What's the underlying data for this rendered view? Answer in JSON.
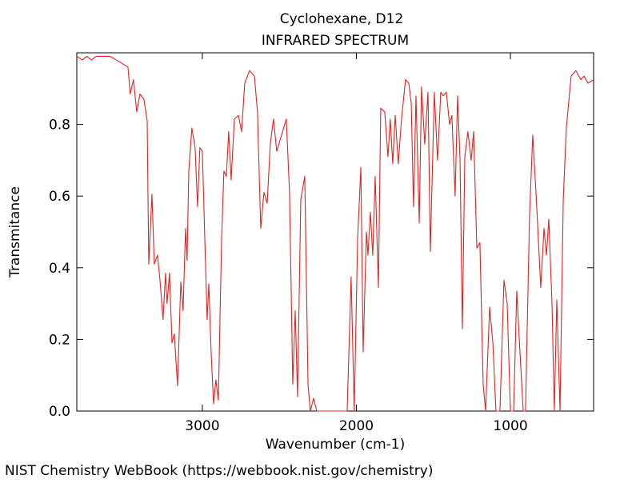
{
  "chart_data": {
    "type": "line",
    "title": "Cyclohexane, D12",
    "subtitle": "INFRARED SPECTRUM",
    "x_label": "Wavenumber (cm-1)",
    "y_label": "Transmitance",
    "source": "NIST Chemistry WebBook (https://webbook.nist.gov/chemistry)",
    "xlim": [
      3815,
      460
    ],
    "ylim": [
      0,
      1.0
    ],
    "xticks": [
      3000,
      2000,
      1000
    ],
    "yticks": [
      {
        "value": 0,
        "label": "0.0"
      },
      0.2,
      0.4,
      0.6,
      0.8
    ],
    "grid": false,
    "series": [
      {
        "color": "#e8201e",
        "x": [
          3815,
          3780,
          3750,
          3720,
          3690,
          3650,
          3600,
          3560,
          3520,
          3483,
          3468,
          3447,
          3426,
          3405,
          3379,
          3358,
          3348,
          3327,
          3312,
          3291,
          3275,
          3255,
          3239,
          3229,
          3213,
          3197,
          3182,
          3161,
          3140,
          3125,
          3109,
          3099,
          3088,
          3068,
          3047,
          3031,
          3016,
          3000,
          2984,
          2969,
          2958,
          2943,
          2927,
          2912,
          2896,
          2875,
          2860,
          2844,
          2829,
          2813,
          2792,
          2766,
          2745,
          2725,
          2694,
          2662,
          2642,
          2621,
          2600,
          2579,
          2559,
          2538,
          2517,
          2486,
          2455,
          2434,
          2413,
          2397,
          2382,
          2361,
          2335,
          2314,
          2299,
          2278,
          2257,
          2060,
          2034,
          2014,
          1992,
          1971,
          1956,
          1935,
          1925,
          1909,
          1894,
          1878,
          1857,
          1842,
          1816,
          1795,
          1780,
          1764,
          1748,
          1728,
          1707,
          1681,
          1660,
          1644,
          1629,
          1613,
          1592,
          1577,
          1556,
          1535,
          1520,
          1494,
          1473,
          1452,
          1437,
          1416,
          1395,
          1380,
          1359,
          1343,
          1327,
          1312,
          1296,
          1276,
          1255,
          1239,
          1218,
          1198,
          1177,
          1161,
          1135,
          1114,
          1094,
          1068,
          1042,
          1021,
          1000,
          979,
          959,
          938,
          917,
          902,
          876,
          855,
          834,
          803,
          782,
          766,
          751,
          730,
          715,
          699,
          678,
          657,
          637,
          606,
          575,
          543,
          522,
          496,
          460
        ],
        "values": [
          0.99,
          0.98,
          0.99,
          0.98,
          0.99,
          0.99,
          0.99,
          0.98,
          0.97,
          0.96,
          0.885,
          0.925,
          0.835,
          0.885,
          0.87,
          0.81,
          0.41,
          0.605,
          0.41,
          0.435,
          0.365,
          0.255,
          0.385,
          0.3,
          0.385,
          0.19,
          0.215,
          0.07,
          0.36,
          0.28,
          0.51,
          0.42,
          0.67,
          0.79,
          0.735,
          0.57,
          0.735,
          0.725,
          0.48,
          0.255,
          0.355,
          0.165,
          0.02,
          0.087,
          0.03,
          0.48,
          0.67,
          0.655,
          0.78,
          0.645,
          0.815,
          0.825,
          0.78,
          0.915,
          0.95,
          0.935,
          0.835,
          0.51,
          0.61,
          0.58,
          0.745,
          0.815,
          0.725,
          0.77,
          0.815,
          0.61,
          0.075,
          0.28,
          0.04,
          0.59,
          0.655,
          0.075,
          0,
          0.035,
          0,
          0,
          0.375,
          0,
          0.48,
          0.68,
          0.165,
          0.5,
          0.435,
          0.555,
          0.435,
          0.655,
          0.345,
          0.845,
          0.835,
          0.71,
          0.815,
          0.69,
          0.825,
          0.69,
          0.815,
          0.925,
          0.915,
          0.86,
          0.57,
          0.88,
          0.525,
          0.905,
          0.745,
          0.89,
          0.445,
          0.89,
          0.7,
          0.89,
          0.88,
          0.89,
          0.8,
          0.825,
          0.6,
          0.88,
          0.7,
          0.23,
          0.71,
          0.78,
          0.7,
          0.78,
          0.455,
          0.47,
          0.075,
          0,
          0.29,
          0.19,
          0,
          0,
          0.365,
          0.3,
          0,
          0,
          0.335,
          0.165,
          0,
          0,
          0.545,
          0.77,
          0.61,
          0.345,
          0.51,
          0.435,
          0.535,
          0.3,
          0,
          0.31,
          0,
          0.59,
          0.79,
          0.935,
          0.95,
          0.925,
          0.935,
          0.915,
          0.925
        ]
      }
    ]
  }
}
